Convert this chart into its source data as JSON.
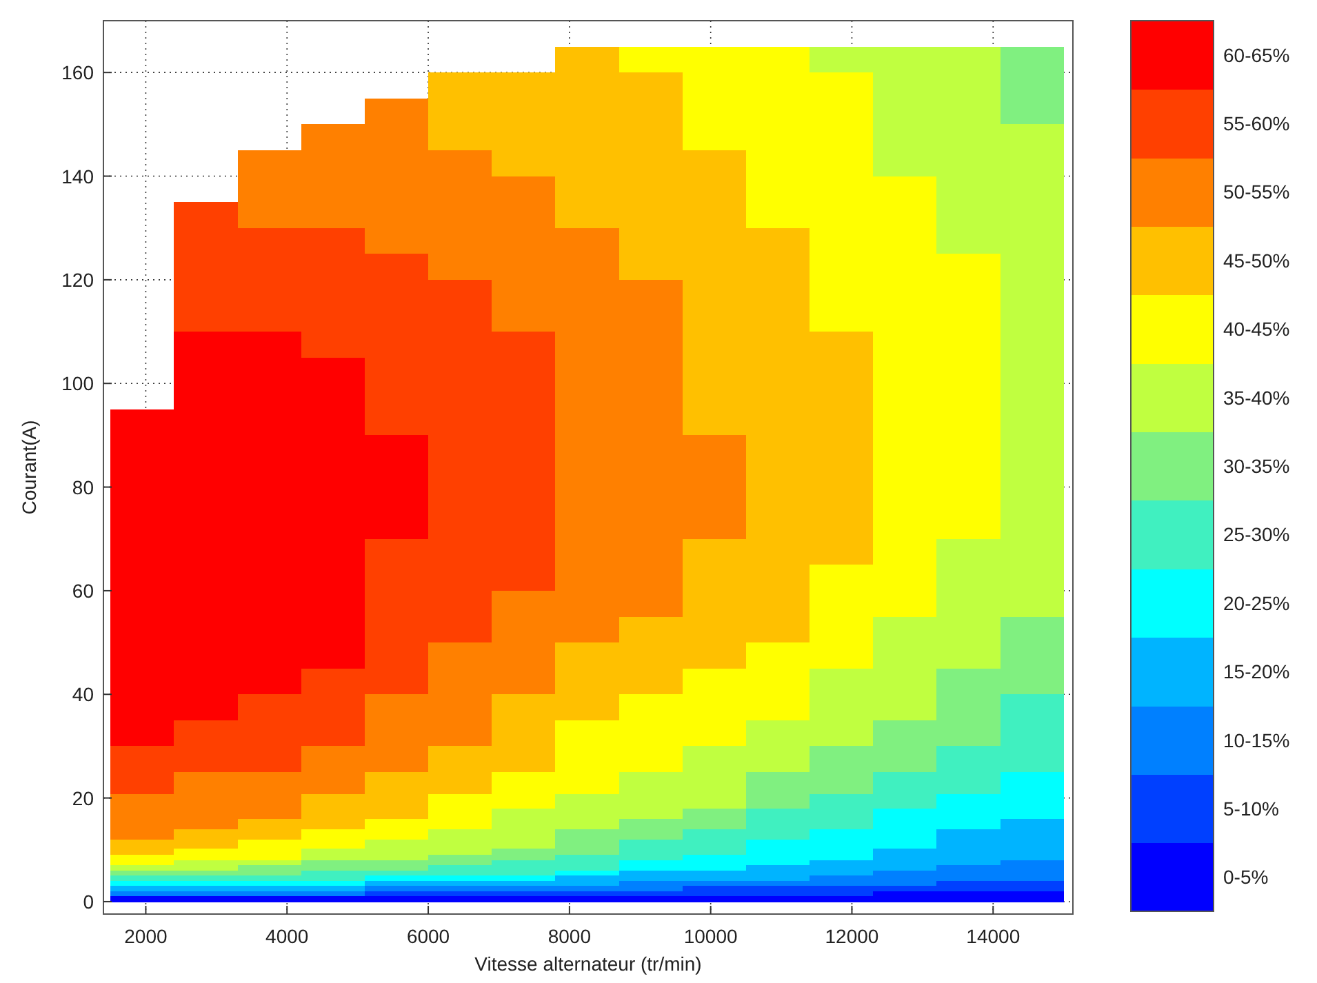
{
  "chart_data": {
    "type": "heatmap",
    "xlabel": "Vitesse alternateur (tr/min)",
    "ylabel": "Courant(A)",
    "xlim": [
      1400,
      15130
    ],
    "ylim": [
      -2.4,
      170
    ],
    "xticks": [
      2000,
      4000,
      6000,
      8000,
      10000,
      12000,
      14000
    ],
    "yticks": [
      0,
      20,
      40,
      60,
      80,
      100,
      120,
      140,
      160
    ],
    "grid": true,
    "clim": [
      0,
      65
    ],
    "cticks": [
      {
        "value": 2.5,
        "label": "0-5%"
      },
      {
        "value": 7.5,
        "label": "5-10%"
      },
      {
        "value": 12.5,
        "label": "10-15%"
      },
      {
        "value": 17.5,
        "label": "15-20%"
      },
      {
        "value": 22.5,
        "label": "20-25%"
      },
      {
        "value": 27.5,
        "label": "25-30%"
      },
      {
        "value": 32.5,
        "label": "30-35%"
      },
      {
        "value": 37.5,
        "label": "35-40%"
      },
      {
        "value": 42.5,
        "label": "40-45%"
      },
      {
        "value": 47.5,
        "label": "45-50%"
      },
      {
        "value": 52.5,
        "label": "50-55%"
      },
      {
        "value": 57.5,
        "label": "55-60%"
      },
      {
        "value": 62.5,
        "label": "60-65%"
      }
    ],
    "colors": [
      "#0000ff",
      "#0040ff",
      "#0080ff",
      "#00b4ff",
      "#00ffff",
      "#40f0c0",
      "#80f080",
      "#c0ff40",
      "#ffff00",
      "#ffc000",
      "#ff8000",
      "#ff4000",
      "#ff0000"
    ],
    "x": [
      1950,
      2850,
      3750,
      4650,
      5550,
      6450,
      7350,
      8250,
      9150,
      10050,
      10950,
      11850,
      12750,
      13650,
      14550
    ],
    "y": [
      162.5,
      157.5,
      152.5,
      147.5,
      142.5,
      137.5,
      132.5,
      127.5,
      122.5,
      117.5,
      112.5,
      107.5,
      102.5,
      97.5,
      92.5,
      87.5,
      82.5,
      77.5,
      72.5,
      67.5,
      62.5,
      57.5,
      52.5,
      47.5,
      42.5,
      37.5,
      32.5,
      27.5,
      22.5,
      19,
      17,
      15,
      13,
      11,
      9.5,
      8.5,
      7.5,
      6.5,
      5.5,
      4.5,
      3.5,
      2.5,
      1.5,
      0.5
    ],
    "cells": [
      [
        null,
        null,
        null,
        null,
        null,
        null,
        null,
        47.5,
        42.5,
        42.5,
        42.5,
        37.5,
        37.5,
        37.5,
        32.5
      ],
      [
        null,
        null,
        null,
        null,
        null,
        47.5,
        47.5,
        47.5,
        47.5,
        42.5,
        42.5,
        42.5,
        37.5,
        37.5,
        32.5
      ],
      [
        null,
        null,
        null,
        null,
        52.5,
        47.5,
        47.5,
        47.5,
        47.5,
        42.5,
        42.5,
        42.5,
        37.5,
        37.5,
        32.5
      ],
      [
        null,
        null,
        null,
        52.5,
        52.5,
        47.5,
        47.5,
        47.5,
        47.5,
        42.5,
        42.5,
        42.5,
        37.5,
        37.5,
        37.5
      ],
      [
        null,
        null,
        52.5,
        52.5,
        52.5,
        52.5,
        47.5,
        47.5,
        47.5,
        47.5,
        42.5,
        42.5,
        37.5,
        37.5,
        37.5
      ],
      [
        null,
        null,
        52.5,
        52.5,
        52.5,
        52.5,
        52.5,
        47.5,
        47.5,
        47.5,
        42.5,
        42.5,
        42.5,
        37.5,
        37.5
      ],
      [
        null,
        57.5,
        52.5,
        52.5,
        52.5,
        52.5,
        52.5,
        47.5,
        47.5,
        47.5,
        42.5,
        42.5,
        42.5,
        37.5,
        37.5
      ],
      [
        null,
        57.5,
        57.5,
        57.5,
        52.5,
        52.5,
        52.5,
        52.5,
        47.5,
        47.5,
        47.5,
        42.5,
        42.5,
        37.5,
        37.5
      ],
      [
        null,
        57.5,
        57.5,
        57.5,
        57.5,
        52.5,
        52.5,
        52.5,
        47.5,
        47.5,
        47.5,
        42.5,
        42.5,
        42.5,
        37.5
      ],
      [
        null,
        57.5,
        57.5,
        57.5,
        57.5,
        57.5,
        52.5,
        52.5,
        52.5,
        47.5,
        47.5,
        42.5,
        42.5,
        42.5,
        37.5
      ],
      [
        null,
        57.5,
        57.5,
        57.5,
        57.5,
        57.5,
        52.5,
        52.5,
        52.5,
        47.5,
        47.5,
        42.5,
        42.5,
        42.5,
        37.5
      ],
      [
        null,
        62.5,
        62.5,
        57.5,
        57.5,
        57.5,
        57.5,
        52.5,
        52.5,
        47.5,
        47.5,
        47.5,
        42.5,
        42.5,
        37.5
      ],
      [
        null,
        62.5,
        62.5,
        62.5,
        57.5,
        57.5,
        57.5,
        52.5,
        52.5,
        47.5,
        47.5,
        47.5,
        42.5,
        42.5,
        37.5
      ],
      [
        null,
        62.5,
        62.5,
        62.5,
        57.5,
        57.5,
        57.5,
        52.5,
        52.5,
        47.5,
        47.5,
        47.5,
        42.5,
        42.5,
        37.5
      ],
      [
        62.5,
        62.5,
        62.5,
        62.5,
        57.5,
        57.5,
        57.5,
        52.5,
        52.5,
        47.5,
        47.5,
        47.5,
        42.5,
        42.5,
        37.5
      ],
      [
        62.5,
        62.5,
        62.5,
        62.5,
        62.5,
        57.5,
        57.5,
        52.5,
        52.5,
        52.5,
        47.5,
        47.5,
        42.5,
        42.5,
        37.5
      ],
      [
        62.5,
        62.5,
        62.5,
        62.5,
        62.5,
        57.5,
        57.5,
        52.5,
        52.5,
        52.5,
        47.5,
        47.5,
        42.5,
        42.5,
        37.5
      ],
      [
        62.5,
        62.5,
        62.5,
        62.5,
        62.5,
        57.5,
        57.5,
        52.5,
        52.5,
        52.5,
        47.5,
        47.5,
        42.5,
        42.5,
        37.5
      ],
      [
        62.5,
        62.5,
        62.5,
        62.5,
        62.5,
        57.5,
        57.5,
        52.5,
        52.5,
        52.5,
        47.5,
        47.5,
        42.5,
        42.5,
        37.5
      ],
      [
        62.5,
        62.5,
        62.5,
        62.5,
        57.5,
        57.5,
        57.5,
        52.5,
        52.5,
        47.5,
        47.5,
        47.5,
        42.5,
        37.5,
        37.5
      ],
      [
        62.5,
        62.5,
        62.5,
        62.5,
        57.5,
        57.5,
        57.5,
        52.5,
        52.5,
        47.5,
        47.5,
        42.5,
        42.5,
        37.5,
        37.5
      ],
      [
        62.5,
        62.5,
        62.5,
        62.5,
        57.5,
        57.5,
        52.5,
        52.5,
        52.5,
        47.5,
        47.5,
        42.5,
        42.5,
        37.5,
        37.5
      ],
      [
        62.5,
        62.5,
        62.5,
        62.5,
        57.5,
        57.5,
        52.5,
        52.5,
        47.5,
        47.5,
        47.5,
        42.5,
        37.5,
        37.5,
        32.5
      ],
      [
        62.5,
        62.5,
        62.5,
        62.5,
        57.5,
        52.5,
        52.5,
        47.5,
        47.5,
        47.5,
        42.5,
        42.5,
        37.5,
        37.5,
        32.5
      ],
      [
        62.5,
        62.5,
        62.5,
        57.5,
        57.5,
        52.5,
        52.5,
        47.5,
        47.5,
        42.5,
        42.5,
        37.5,
        37.5,
        32.5,
        32.5
      ],
      [
        62.5,
        62.5,
        57.5,
        57.5,
        52.5,
        52.5,
        47.5,
        47.5,
        42.5,
        42.5,
        42.5,
        37.5,
        37.5,
        32.5,
        27.5
      ],
      [
        62.5,
        57.5,
        57.5,
        57.5,
        52.5,
        52.5,
        47.5,
        42.5,
        42.5,
        42.5,
        37.5,
        37.5,
        32.5,
        32.5,
        27.5
      ],
      [
        57.5,
        57.5,
        57.5,
        52.5,
        52.5,
        47.5,
        47.5,
        42.5,
        42.5,
        37.5,
        37.5,
        32.5,
        32.5,
        27.5,
        27.5
      ],
      [
        57.5,
        52.5,
        52.5,
        52.5,
        47.5,
        47.5,
        42.5,
        42.5,
        37.5,
        37.5,
        32.5,
        32.5,
        27.5,
        27.5,
        22.5
      ],
      [
        52.5,
        52.5,
        52.5,
        47.5,
        47.5,
        42.5,
        42.5,
        37.5,
        37.5,
        37.5,
        32.5,
        27.5,
        27.5,
        22.5,
        22.5
      ],
      [
        52.5,
        52.5,
        52.5,
        47.5,
        47.5,
        42.5,
        37.5,
        37.5,
        37.5,
        32.5,
        27.5,
        27.5,
        22.5,
        22.5,
        22.5
      ],
      [
        52.5,
        52.5,
        47.5,
        47.5,
        42.5,
        42.5,
        37.5,
        37.5,
        32.5,
        32.5,
        27.5,
        27.5,
        22.5,
        22.5,
        17.5
      ],
      [
        52.5,
        47.5,
        47.5,
        42.5,
        42.5,
        37.5,
        37.5,
        32.5,
        32.5,
        27.5,
        27.5,
        22.5,
        22.5,
        17.5,
        17.5
      ],
      [
        47.5,
        47.5,
        42.5,
        42.5,
        37.5,
        37.5,
        37.5,
        32.5,
        27.5,
        27.5,
        22.5,
        22.5,
        22.5,
        17.5,
        17.5
      ],
      [
        47.5,
        42.5,
        42.5,
        37.5,
        37.5,
        37.5,
        32.5,
        32.5,
        27.5,
        27.5,
        22.5,
        22.5,
        17.5,
        17.5,
        17.5
      ],
      [
        42.5,
        42.5,
        42.5,
        37.5,
        37.5,
        32.5,
        32.5,
        27.5,
        27.5,
        22.5,
        22.5,
        22.5,
        17.5,
        17.5,
        17.5
      ],
      [
        42.5,
        37.5,
        37.5,
        32.5,
        32.5,
        32.5,
        27.5,
        27.5,
        22.5,
        22.5,
        22.5,
        17.5,
        17.5,
        17.5,
        12.5
      ],
      [
        37.5,
        37.5,
        32.5,
        32.5,
        32.5,
        27.5,
        27.5,
        27.5,
        22.5,
        22.5,
        17.5,
        17.5,
        17.5,
        12.5,
        12.5
      ],
      [
        32.5,
        32.5,
        32.5,
        27.5,
        27.5,
        27.5,
        27.5,
        22.5,
        17.5,
        17.5,
        17.5,
        17.5,
        12.5,
        12.5,
        12.5
      ],
      [
        27.5,
        27.5,
        27.5,
        27.5,
        22.5,
        22.5,
        22.5,
        17.5,
        17.5,
        17.5,
        17.5,
        12.5,
        12.5,
        12.5,
        12.5
      ],
      [
        22.5,
        22.5,
        22.5,
        22.5,
        17.5,
        17.5,
        17.5,
        17.5,
        12.5,
        12.5,
        12.5,
        12.5,
        12.5,
        7.5,
        7.5
      ],
      [
        17.5,
        17.5,
        17.5,
        17.5,
        12.5,
        12.5,
        12.5,
        12.5,
        12.5,
        7.5,
        7.5,
        7.5,
        7.5,
        7.5,
        7.5
      ],
      [
        12.5,
        12.5,
        12.5,
        12.5,
        7.5,
        7.5,
        7.5,
        7.5,
        7.5,
        7.5,
        7.5,
        7.5,
        2.5,
        2.5,
        2.5
      ],
      [
        2.5,
        2.5,
        2.5,
        2.5,
        2.5,
        2.5,
        2.5,
        2.5,
        2.5,
        2.5,
        2.5,
        2.5,
        2.5,
        2.5,
        2.5
      ]
    ]
  }
}
